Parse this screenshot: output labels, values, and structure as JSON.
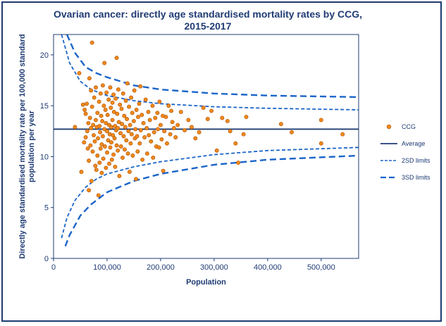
{
  "chart_data": {
    "type": "scatter",
    "title": "Ovarian cancer: directly age standardised mortality rates by CCG, 2015-2017",
    "xlabel": "Population",
    "ylabel": "Directly age standardised mortality rate per 100,000 standard population per year",
    "xlim": [
      0,
      570000
    ],
    "ylim": [
      0,
      22
    ],
    "xticks": [
      "0",
      "100,000",
      "200,000",
      "300,000",
      "400,000",
      "500,000"
    ],
    "yticks": [
      "0",
      "5",
      "10",
      "15",
      "20"
    ],
    "grid": false,
    "legend_position": "right",
    "average": 12.7,
    "legend": [
      {
        "label": "CCG",
        "kind": "marker"
      },
      {
        "label": "Average",
        "kind": "solid"
      },
      {
        "label": "2SD limits",
        "kind": "dash"
      },
      {
        "label": "3SD limits",
        "kind": "longdash"
      }
    ],
    "colors": {
      "marker_fill": "#f28a1e",
      "marker_edge": "#b35500",
      "line": "#1b65c9",
      "average": "#1f3b73"
    },
    "limits": {
      "upper3": [
        [
          25000,
          22
        ],
        [
          40000,
          20.2
        ],
        [
          60000,
          18.8
        ],
        [
          80000,
          18.2
        ],
        [
          100000,
          17.8
        ],
        [
          150000,
          17.0
        ],
        [
          200000,
          16.6
        ],
        [
          300000,
          16.2
        ],
        [
          400000,
          16.0
        ],
        [
          570000,
          15.85
        ]
      ],
      "upper2": [
        [
          15000,
          22
        ],
        [
          30000,
          19.2
        ],
        [
          50000,
          17.4
        ],
        [
          70000,
          16.6
        ],
        [
          100000,
          16.0
        ],
        [
          150000,
          15.5
        ],
        [
          200000,
          15.2
        ],
        [
          300000,
          14.9
        ],
        [
          400000,
          14.75
        ],
        [
          570000,
          14.6
        ]
      ],
      "lower2": [
        [
          15000,
          2.0
        ],
        [
          25000,
          4.0
        ],
        [
          40000,
          5.7
        ],
        [
          60000,
          7.0
        ],
        [
          80000,
          7.8
        ],
        [
          100000,
          8.3
        ],
        [
          150000,
          9.0
        ],
        [
          200000,
          9.5
        ],
        [
          300000,
          10.2
        ],
        [
          400000,
          10.6
        ],
        [
          570000,
          10.9
        ]
      ],
      "lower3": [
        [
          22000,
          1.2
        ],
        [
          30000,
          2.3
        ],
        [
          50000,
          4.2
        ],
        [
          70000,
          5.3
        ],
        [
          100000,
          6.5
        ],
        [
          150000,
          7.6
        ],
        [
          200000,
          8.3
        ],
        [
          300000,
          9.2
        ],
        [
          400000,
          9.7
        ],
        [
          570000,
          10.1
        ]
      ]
    },
    "points": [
      [
        40000,
        12.9
      ],
      [
        48000,
        18.2
      ],
      [
        52000,
        8.5
      ],
      [
        55000,
        15.1
      ],
      [
        57000,
        11.4
      ],
      [
        58000,
        14.6
      ],
      [
        60000,
        14.2
      ],
      [
        60000,
        11.9
      ],
      [
        62000,
        15.2
      ],
      [
        63000,
        12.5
      ],
      [
        64000,
        10.8
      ],
      [
        65000,
        13.3
      ],
      [
        66000,
        9.6
      ],
      [
        66000,
        6.7
      ],
      [
        67000,
        17.7
      ],
      [
        68000,
        13.8
      ],
      [
        69000,
        11.1
      ],
      [
        70000,
        16.5
      ],
      [
        70000,
        12.8
      ],
      [
        71000,
        7.6
      ],
      [
        72000,
        21.2
      ],
      [
        72000,
        14.9
      ],
      [
        73000,
        10.5
      ],
      [
        74000,
        13.1
      ],
      [
        75000,
        12.1
      ],
      [
        76000,
        15.8
      ],
      [
        77000,
        11.5
      ],
      [
        78000,
        9.1
      ],
      [
        79000,
        16.8
      ],
      [
        79000,
        13.6
      ],
      [
        80000,
        8.7
      ],
      [
        81000,
        12.9
      ],
      [
        82000,
        10.1
      ],
      [
        82000,
        14.3
      ],
      [
        83000,
        11.8
      ],
      [
        84000,
        6.2
      ],
      [
        85000,
        15.4
      ],
      [
        86000,
        13.0
      ],
      [
        86000,
        9.4
      ],
      [
        87000,
        12.4
      ],
      [
        88000,
        16.2
      ],
      [
        88000,
        10.8
      ],
      [
        89000,
        14.0
      ],
      [
        90000,
        11.2
      ],
      [
        90000,
        8.4
      ],
      [
        91000,
        13.5
      ],
      [
        92000,
        17.0
      ],
      [
        92000,
        12.0
      ],
      [
        93000,
        9.8
      ],
      [
        94000,
        15.0
      ],
      [
        95000,
        19.2
      ],
      [
        95000,
        12.7
      ],
      [
        96000,
        11.0
      ],
      [
        97000,
        14.6
      ],
      [
        98000,
        8.9
      ],
      [
        98000,
        13.3
      ],
      [
        99000,
        16.3
      ],
      [
        100000,
        12.5
      ],
      [
        100000,
        10.4
      ],
      [
        101000,
        14.1
      ],
      [
        102000,
        11.6
      ],
      [
        103000,
        15.6
      ],
      [
        104000,
        13.1
      ],
      [
        104000,
        9.3
      ],
      [
        105000,
        12.2
      ],
      [
        106000,
        16.8
      ],
      [
        106000,
        10.9
      ],
      [
        107000,
        14.8
      ],
      [
        108000,
        12.9
      ],
      [
        108000,
        11.4
      ],
      [
        109000,
        9.7
      ],
      [
        110000,
        15.3
      ],
      [
        110000,
        13.6
      ],
      [
        111000,
        12.1
      ],
      [
        112000,
        16.1
      ],
      [
        112000,
        10.2
      ],
      [
        113000,
        14.4
      ],
      [
        114000,
        11.8
      ],
      [
        115000,
        13.0
      ],
      [
        115000,
        9.0
      ],
      [
        116000,
        15.7
      ],
      [
        117000,
        12.6
      ],
      [
        118000,
        19.7
      ],
      [
        118000,
        11.1
      ],
      [
        119000,
        14.2
      ],
      [
        120000,
        12.8
      ],
      [
        120000,
        10.6
      ],
      [
        121000,
        16.6
      ],
      [
        122000,
        13.4
      ],
      [
        123000,
        8.1
      ],
      [
        124000,
        15.1
      ],
      [
        125000,
        12.3
      ],
      [
        126000,
        11.0
      ],
      [
        127000,
        14.7
      ],
      [
        128000,
        13.2
      ],
      [
        129000,
        9.9
      ],
      [
        130000,
        16.2
      ],
      [
        131000,
        12.0
      ],
      [
        132000,
        14.0
      ],
      [
        133000,
        10.7
      ],
      [
        134000,
        12.9
      ],
      [
        135000,
        15.5
      ],
      [
        136000,
        11.6
      ],
      [
        137000,
        13.7
      ],
      [
        138000,
        17.2
      ],
      [
        139000,
        10.3
      ],
      [
        140000,
        12.5
      ],
      [
        141000,
        14.9
      ],
      [
        142000,
        8.5
      ],
      [
        143000,
        13.1
      ],
      [
        144000,
        11.3
      ],
      [
        145000,
        15.8
      ],
      [
        146000,
        12.2
      ],
      [
        147000,
        14.3
      ],
      [
        148000,
        10.1
      ],
      [
        150000,
        13.5
      ],
      [
        151000,
        16.5
      ],
      [
        152000,
        11.8
      ],
      [
        153000,
        12.7
      ],
      [
        154000,
        7.8
      ],
      [
        155000,
        14.6
      ],
      [
        156000,
        12.0
      ],
      [
        157000,
        10.5
      ],
      [
        158000,
        13.9
      ],
      [
        160000,
        15.2
      ],
      [
        161000,
        11.3
      ],
      [
        162000,
        16.9
      ],
      [
        163000,
        12.6
      ],
      [
        165000,
        14.1
      ],
      [
        166000,
        9.7
      ],
      [
        168000,
        13.3
      ],
      [
        170000,
        11.9
      ],
      [
        172000,
        15.6
      ],
      [
        174000,
        12.8
      ],
      [
        175000,
        10.3
      ],
      [
        177000,
        14.4
      ],
      [
        178000,
        12.1
      ],
      [
        180000,
        13.6
      ],
      [
        182000,
        11.5
      ],
      [
        185000,
        15.0
      ],
      [
        186000,
        9.9
      ],
      [
        188000,
        12.4
      ],
      [
        190000,
        13.8
      ],
      [
        192000,
        11.0
      ],
      [
        194000,
        14.3
      ],
      [
        195000,
        12.7
      ],
      [
        197000,
        10.9
      ],
      [
        198000,
        15.4
      ],
      [
        200000,
        13.1
      ],
      [
        202000,
        11.7
      ],
      [
        204000,
        14.0
      ],
      [
        205000,
        8.6
      ],
      [
        207000,
        12.5
      ],
      [
        210000,
        13.9
      ],
      [
        212000,
        11.3
      ],
      [
        215000,
        15.0
      ],
      [
        218000,
        12.2
      ],
      [
        220000,
        14.5
      ],
      [
        222000,
        13.4
      ],
      [
        225000,
        12.8
      ],
      [
        228000,
        11.9
      ],
      [
        232000,
        13.1
      ],
      [
        238000,
        14.4
      ],
      [
        245000,
        12.6
      ],
      [
        252000,
        13.6
      ],
      [
        258000,
        12.9
      ],
      [
        265000,
        11.8
      ],
      [
        272000,
        12.4
      ],
      [
        280000,
        14.8
      ],
      [
        288000,
        13.7
      ],
      [
        295000,
        14.5
      ],
      [
        305000,
        10.6
      ],
      [
        315000,
        13.8
      ],
      [
        325000,
        13.5
      ],
      [
        330000,
        12.5
      ],
      [
        340000,
        11.3
      ],
      [
        345000,
        9.4
      ],
      [
        355000,
        12.2
      ],
      [
        360000,
        13.9
      ],
      [
        425000,
        13.2
      ],
      [
        445000,
        12.4
      ],
      [
        500000,
        13.6
      ],
      [
        500000,
        11.3
      ],
      [
        540000,
        12.2
      ]
    ]
  }
}
